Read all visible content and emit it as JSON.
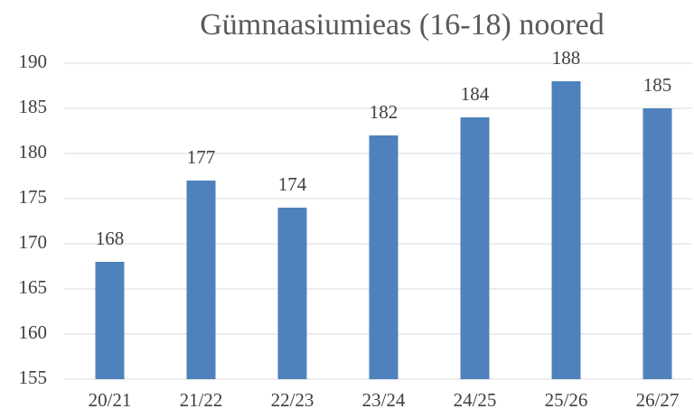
{
  "chart_data": {
    "type": "bar",
    "title": "Gümnaasiumieas (16-18) noored",
    "categories": [
      "20/21",
      "21/22",
      "22/23",
      "23/24",
      "24/25",
      "25/26",
      "26/27"
    ],
    "values": [
      168,
      177,
      174,
      182,
      184,
      188,
      185
    ],
    "color": "#4f81bd",
    "ylim": [
      155,
      190
    ],
    "yticks": [
      155,
      160,
      165,
      170,
      175,
      180,
      185,
      190
    ],
    "grid": true
  }
}
